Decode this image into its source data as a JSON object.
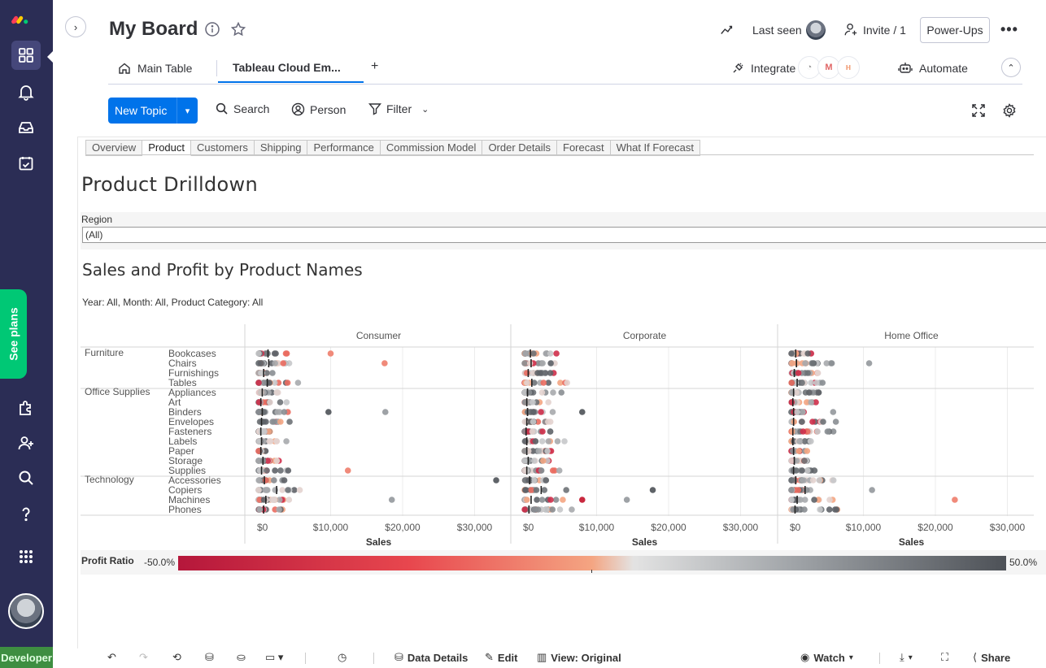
{
  "rail": {
    "see_plans": "See plans",
    "developer": "Developer"
  },
  "board": {
    "title": "My Board",
    "last_seen": "Last seen",
    "invite": "Invite / 1",
    "power_ups": "Power-Ups"
  },
  "views": {
    "main_table": "Main Table",
    "tableau": "Tableau Cloud Em...",
    "integrate": "Integrate",
    "automate": "Automate"
  },
  "toolbar": {
    "new_topic": "New Topic",
    "search": "Search",
    "person": "Person",
    "filter": "Filter"
  },
  "tableau": {
    "tabs": [
      "Overview",
      "Product",
      "Customers",
      "Shipping",
      "Performance",
      "Commission Model",
      "Order Details",
      "Forecast",
      "What If Forecast"
    ],
    "active_tab": "Product",
    "dashboard_title": "Product Drilldown",
    "region_label": "Region",
    "region_value": "(All)",
    "chart_title": "Sales and Profit by Product Names",
    "chart_subtitle": "Year: All, Month: All, Product Category: All",
    "legend_title": "Profit Ratio",
    "legend_min": "-50.0%",
    "legend_max": "50.0%"
  },
  "chart_data": {
    "type": "scatter",
    "title": "Sales and Profit by Product Names",
    "subtitle": "Year: All, Month: All, Product Category: All",
    "xlabel": "Sales",
    "xlim": [
      0,
      33000
    ],
    "x_ticks": [
      "$0",
      "$10,000",
      "$20,000",
      "$30,000"
    ],
    "segments": [
      "Consumer",
      "Corporate",
      "Home Office"
    ],
    "categories": [
      {
        "name": "Furniture",
        "subcategories": [
          "Bookcases",
          "Chairs",
          "Furnishings",
          "Tables"
        ]
      },
      {
        "name": "Office Supplies",
        "subcategories": [
          "Appliances",
          "Art",
          "Binders",
          "Envelopes",
          "Fasteners",
          "Labels",
          "Paper",
          "Storage",
          "Supplies"
        ]
      },
      {
        "name": "Technology",
        "subcategories": [
          "Accessories",
          "Copiers",
          "Machines",
          "Phones"
        ]
      }
    ],
    "color_legend": {
      "title": "Profit Ratio",
      "min": "-50.0%",
      "max": "50.0%",
      "low_color": "#b5173b",
      "high_color": "#4d5157"
    },
    "reference_lines": {
      "Consumer": [
        1300,
        1400,
        700,
        1200,
        500,
        300,
        500,
        400,
        300,
        400,
        300,
        600,
        400,
        800,
        2500,
        1000,
        700
      ],
      "Corporate": [
        800,
        900,
        500,
        1000,
        400,
        300,
        400,
        300,
        200,
        300,
        300,
        500,
        300,
        700,
        2300,
        900,
        600
      ],
      "Home Office": [
        600,
        700,
        400,
        800,
        300,
        200,
        300,
        300,
        200,
        200,
        300,
        400,
        300,
        600,
        1900,
        800,
        500
      ]
    },
    "notable_points": [
      {
        "segment": "Consumer",
        "subcategory": "Bookcases",
        "sales": 10000,
        "color": "salmon"
      },
      {
        "segment": "Consumer",
        "subcategory": "Chairs",
        "sales": 17500,
        "color": "salmon"
      },
      {
        "segment": "Consumer",
        "subcategory": "Binders",
        "sales": 9700,
        "color": "dark"
      },
      {
        "segment": "Consumer",
        "subcategory": "Binders",
        "sales": 17600,
        "color": "grey"
      },
      {
        "segment": "Consumer",
        "subcategory": "Supplies",
        "sales": 12400,
        "color": "salmon"
      },
      {
        "segment": "Consumer",
        "subcategory": "Accessories",
        "sales": 33000,
        "color": "dark"
      },
      {
        "segment": "Consumer",
        "subcategory": "Machines",
        "sales": 18500,
        "color": "grey"
      },
      {
        "segment": "Corporate",
        "subcategory": "Copiers",
        "sales": 17800,
        "color": "dark"
      },
      {
        "segment": "Corporate",
        "subcategory": "Machines",
        "sales": 8000,
        "color": "red"
      },
      {
        "segment": "Corporate",
        "subcategory": "Machines",
        "sales": 14200,
        "color": "grey"
      },
      {
        "segment": "Corporate",
        "subcategory": "Binders",
        "sales": 8000,
        "color": "dark"
      },
      {
        "segment": "Home Office",
        "subcategory": "Chairs",
        "sales": 10800,
        "color": "grey"
      },
      {
        "segment": "Home Office",
        "subcategory": "Copiers",
        "sales": 11200,
        "color": "grey"
      },
      {
        "segment": "Home Office",
        "subcategory": "Machines",
        "sales": 22700,
        "color": "salmon"
      },
      {
        "segment": "Home Office",
        "subcategory": "Binders",
        "sales": 5800,
        "color": "grey"
      }
    ]
  },
  "bottom_bar": {
    "data_details": "Data Details",
    "edit": "Edit",
    "view_original": "View: Original",
    "watch": "Watch",
    "share": "Share"
  }
}
